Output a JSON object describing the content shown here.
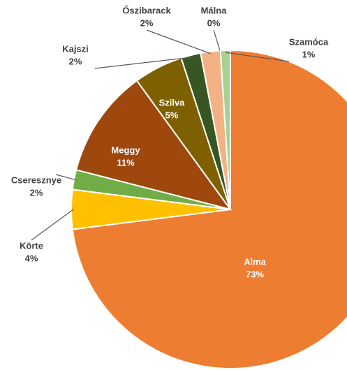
{
  "chart_data": {
    "type": "pie",
    "categories": [
      "Alma",
      "Körte",
      "Cseresznye",
      "Meggy",
      "Szilva",
      "Kajszi",
      "Őszibarack",
      "Málna",
      "Szamóca"
    ],
    "values": [
      73,
      4,
      2,
      11,
      5,
      2,
      2,
      0,
      1
    ],
    "value_labels": [
      "73%",
      "4%",
      "2%",
      "11%",
      "5%",
      "2%",
      "2%",
      "0%",
      "1%"
    ],
    "colors": [
      "#ed7d31",
      "#ffc000",
      "#70ad47",
      "#9e480e",
      "#7f6000",
      "#375623",
      "#f4b183",
      "#c55a11",
      "#a9d18e"
    ]
  }
}
